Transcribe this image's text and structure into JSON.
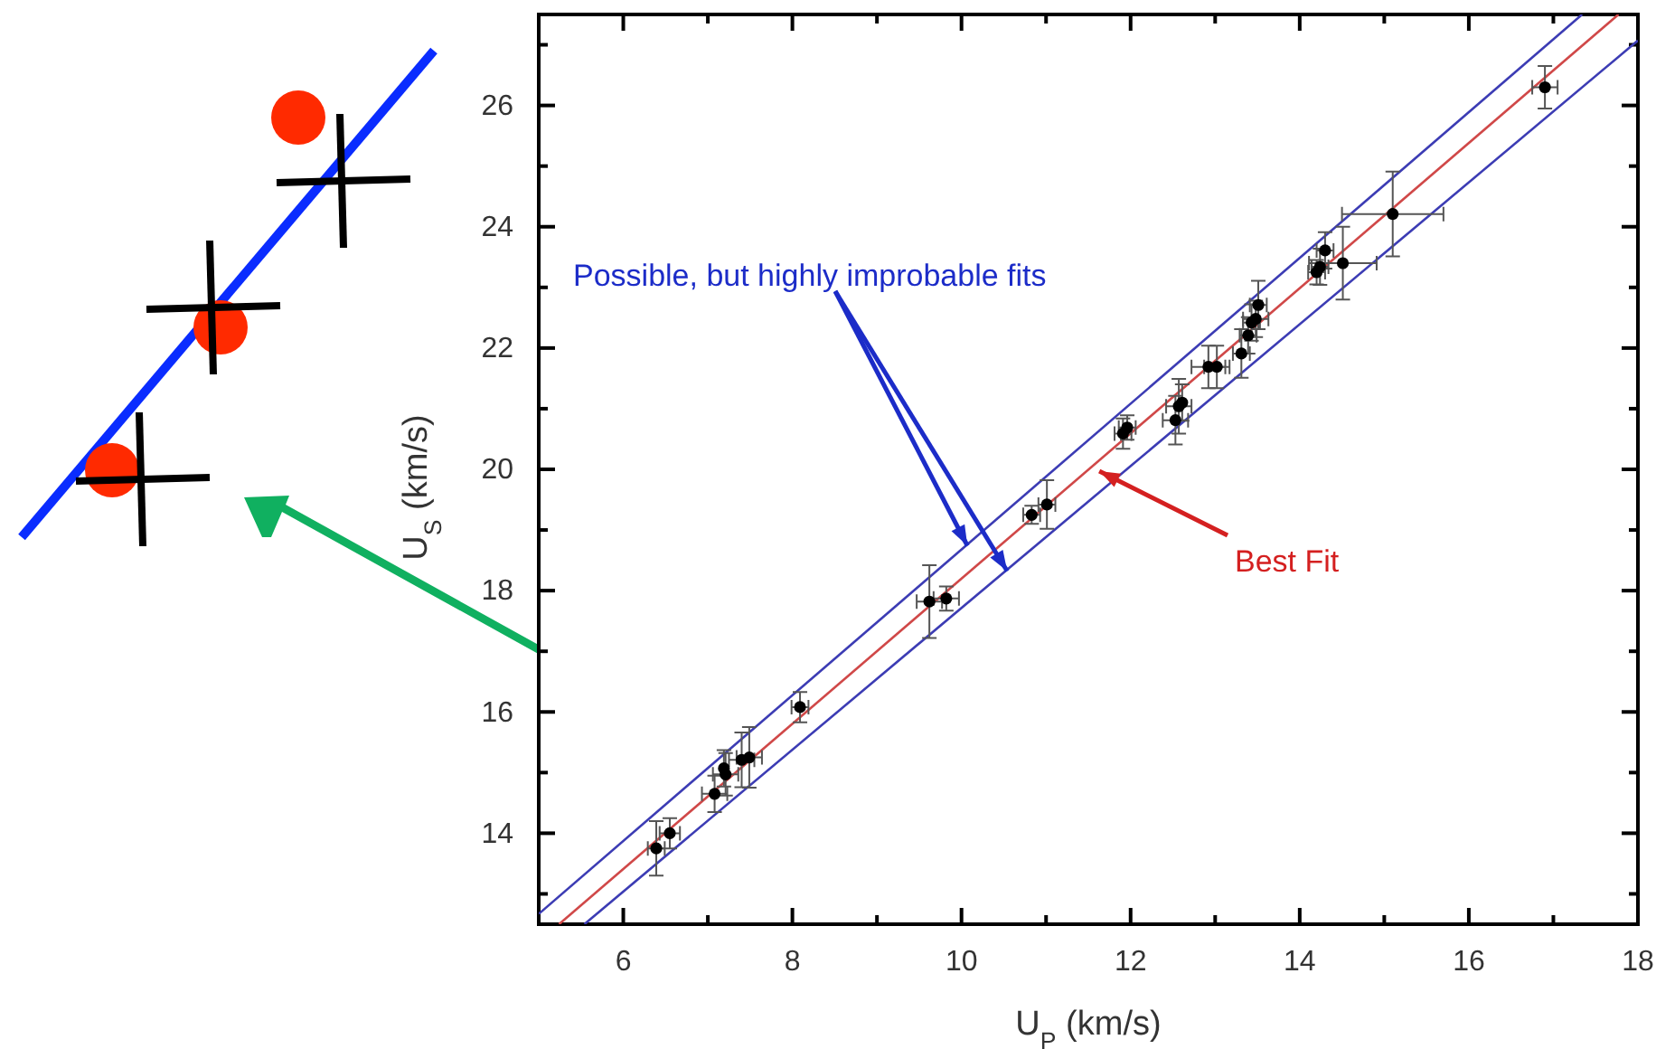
{
  "chart_data": {
    "type": "scatter",
    "xlabel": "U$_{P}$ (km/s)",
    "ylabel": "U$_{S}$ (km/s)",
    "xlim": [
      5,
      18
    ],
    "ylim": [
      12.5,
      27.5
    ],
    "xticks": [
      {
        "value": 5,
        "label": null
      },
      6,
      {
        "value": 7,
        "label": null
      },
      8,
      {
        "value": 9,
        "label": null
      },
      10,
      {
        "value": 11,
        "label": null
      },
      12,
      {
        "value": 13,
        "label": null
      },
      14,
      {
        "value": 15,
        "label": null
      },
      16,
      {
        "value": 17,
        "label": null
      },
      18
    ],
    "yticks": [
      {
        "value": 13,
        "label": null
      },
      14,
      {
        "value": 15,
        "label": null
      },
      16,
      {
        "value": 17,
        "label": null
      },
      18,
      {
        "value": 19,
        "label": null
      },
      20,
      {
        "value": 21,
        "label": null
      },
      22,
      {
        "value": 23,
        "label": null
      },
      24,
      {
        "value": 25,
        "label": null
      },
      26,
      {
        "value": 27,
        "label": null
      }
    ],
    "grid": false,
    "marker": "circle",
    "series": [
      {
        "type": "scatter",
        "color": "#000000",
        "x": [
          6.39,
          6.55,
          7.08,
          7.21,
          7.19,
          7.4,
          7.49,
          8.09,
          9.62,
          9.82,
          10.83,
          11.01,
          11.91,
          11.96,
          12.53,
          12.57,
          12.61,
          12.92,
          13.02,
          13.31,
          13.39,
          13.43,
          13.48,
          13.51,
          14.2,
          14.24,
          14.3,
          14.51,
          15.1,
          16.9
        ],
        "values": [
          13.75,
          14.0,
          14.65,
          14.97,
          15.07,
          15.21,
          15.25,
          16.08,
          17.82,
          17.87,
          19.25,
          19.42,
          20.59,
          20.69,
          20.81,
          21.04,
          21.1,
          21.69,
          21.69,
          21.91,
          22.21,
          22.42,
          22.48,
          22.71,
          23.25,
          23.34,
          23.61,
          23.4,
          24.21,
          26.3
        ],
        "errors": [
          0.45,
          0.25,
          0.3,
          0.35,
          0.3,
          0.45,
          0.5,
          0.25,
          0.6,
          0.2,
          0.15,
          0.4,
          0.25,
          0.2,
          0.4,
          0.45,
          0.3,
          0.35,
          0.35,
          0.4,
          0.3,
          0.3,
          0.3,
          0.4,
          0.2,
          0.3,
          0.3,
          0.6,
          0.7,
          0.35
        ],
        "xerrors": [
          0.1,
          0.12,
          0.15,
          0.15,
          null,
          0.15,
          0.15,
          0.1,
          0.15,
          0.15,
          0.1,
          0.1,
          0.1,
          0.1,
          0.15,
          0.15,
          null,
          0.2,
          0.15,
          0.1,
          0.1,
          0.1,
          0.15,
          0.1,
          0.1,
          0.1,
          0.1,
          0.4,
          0.6,
          0.15
        ]
      },
      {
        "type": "line",
        "color": "#d04848",
        "marker": "none",
        "x": [
          5.24,
          17.77
        ],
        "values": [
          12.5,
          27.5
        ]
      },
      {
        "type": "line",
        "color": "#3c3cb4",
        "marker": "none",
        "x": [
          5,
          17.34
        ],
        "values": [
          12.67,
          27.5
        ]
      },
      {
        "type": "line",
        "color": "#3c3cb4",
        "marker": "none",
        "x": [
          5.54,
          18
        ],
        "values": [
          12.5,
          27.07
        ]
      }
    ],
    "annotations": [
      {
        "text": "Possible, but highly improbable fits",
        "x": 10.07,
        "y": 18.74
      },
      {
        "text": "Best Fit",
        "x": 11.63,
        "y": 19.97
      }
    ]
  }
}
